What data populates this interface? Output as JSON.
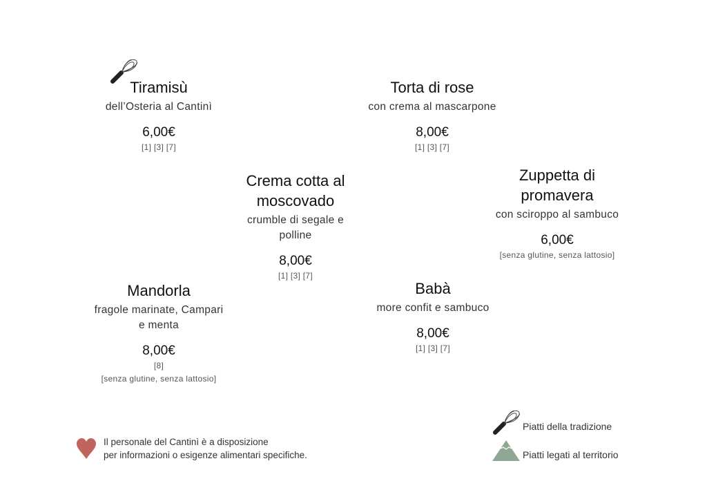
{
  "dishes": [
    {
      "title": "Tiramisù",
      "subtitle": "dell’Osteria al Cantinì",
      "price": "6,00€",
      "allergens": "[1] [3] [7]",
      "badge": "whisk-icon"
    },
    {
      "title": "Torta di rose",
      "subtitle": "con crema al mascarpone",
      "price": "8,00€",
      "allergens": "[1] [3] [7]"
    },
    {
      "title": "Crema cotta al\nmoscovado",
      "subtitle": "crumble di segale e\npolline",
      "price": "8,00€",
      "allergens": "[1] [3] [7]"
    },
    {
      "title": "Zuppetta di\npromavera",
      "subtitle": "con sciroppo al sambuco",
      "price": "6,00€",
      "allergens": "[senza glutine, senza lattosio]"
    },
    {
      "title": "Mandorla",
      "subtitle": "fragole marinate, Campari\ne menta",
      "price": "8,00€",
      "allergens": "[8]\n[senza glutine, senza lattosio]"
    },
    {
      "title": "Babà",
      "subtitle": "more confit e sambuco",
      "price": "8,00€",
      "allergens": "[1] [3] [7]"
    }
  ],
  "footer": {
    "note": "Il personale del Cantinì è a disposizione\nper informazioni o esigenze alimentari specifiche.",
    "note_icon": "heart-icon",
    "legend": [
      {
        "icon": "whisk-icon",
        "label": "Piatti della tradizione"
      },
      {
        "icon": "mountain-icon",
        "label": "Piatti legati al territorio"
      }
    ]
  },
  "colors": {
    "heart": "#c0655e",
    "mountain": "#8fa896",
    "text": "#1a1a1a"
  }
}
